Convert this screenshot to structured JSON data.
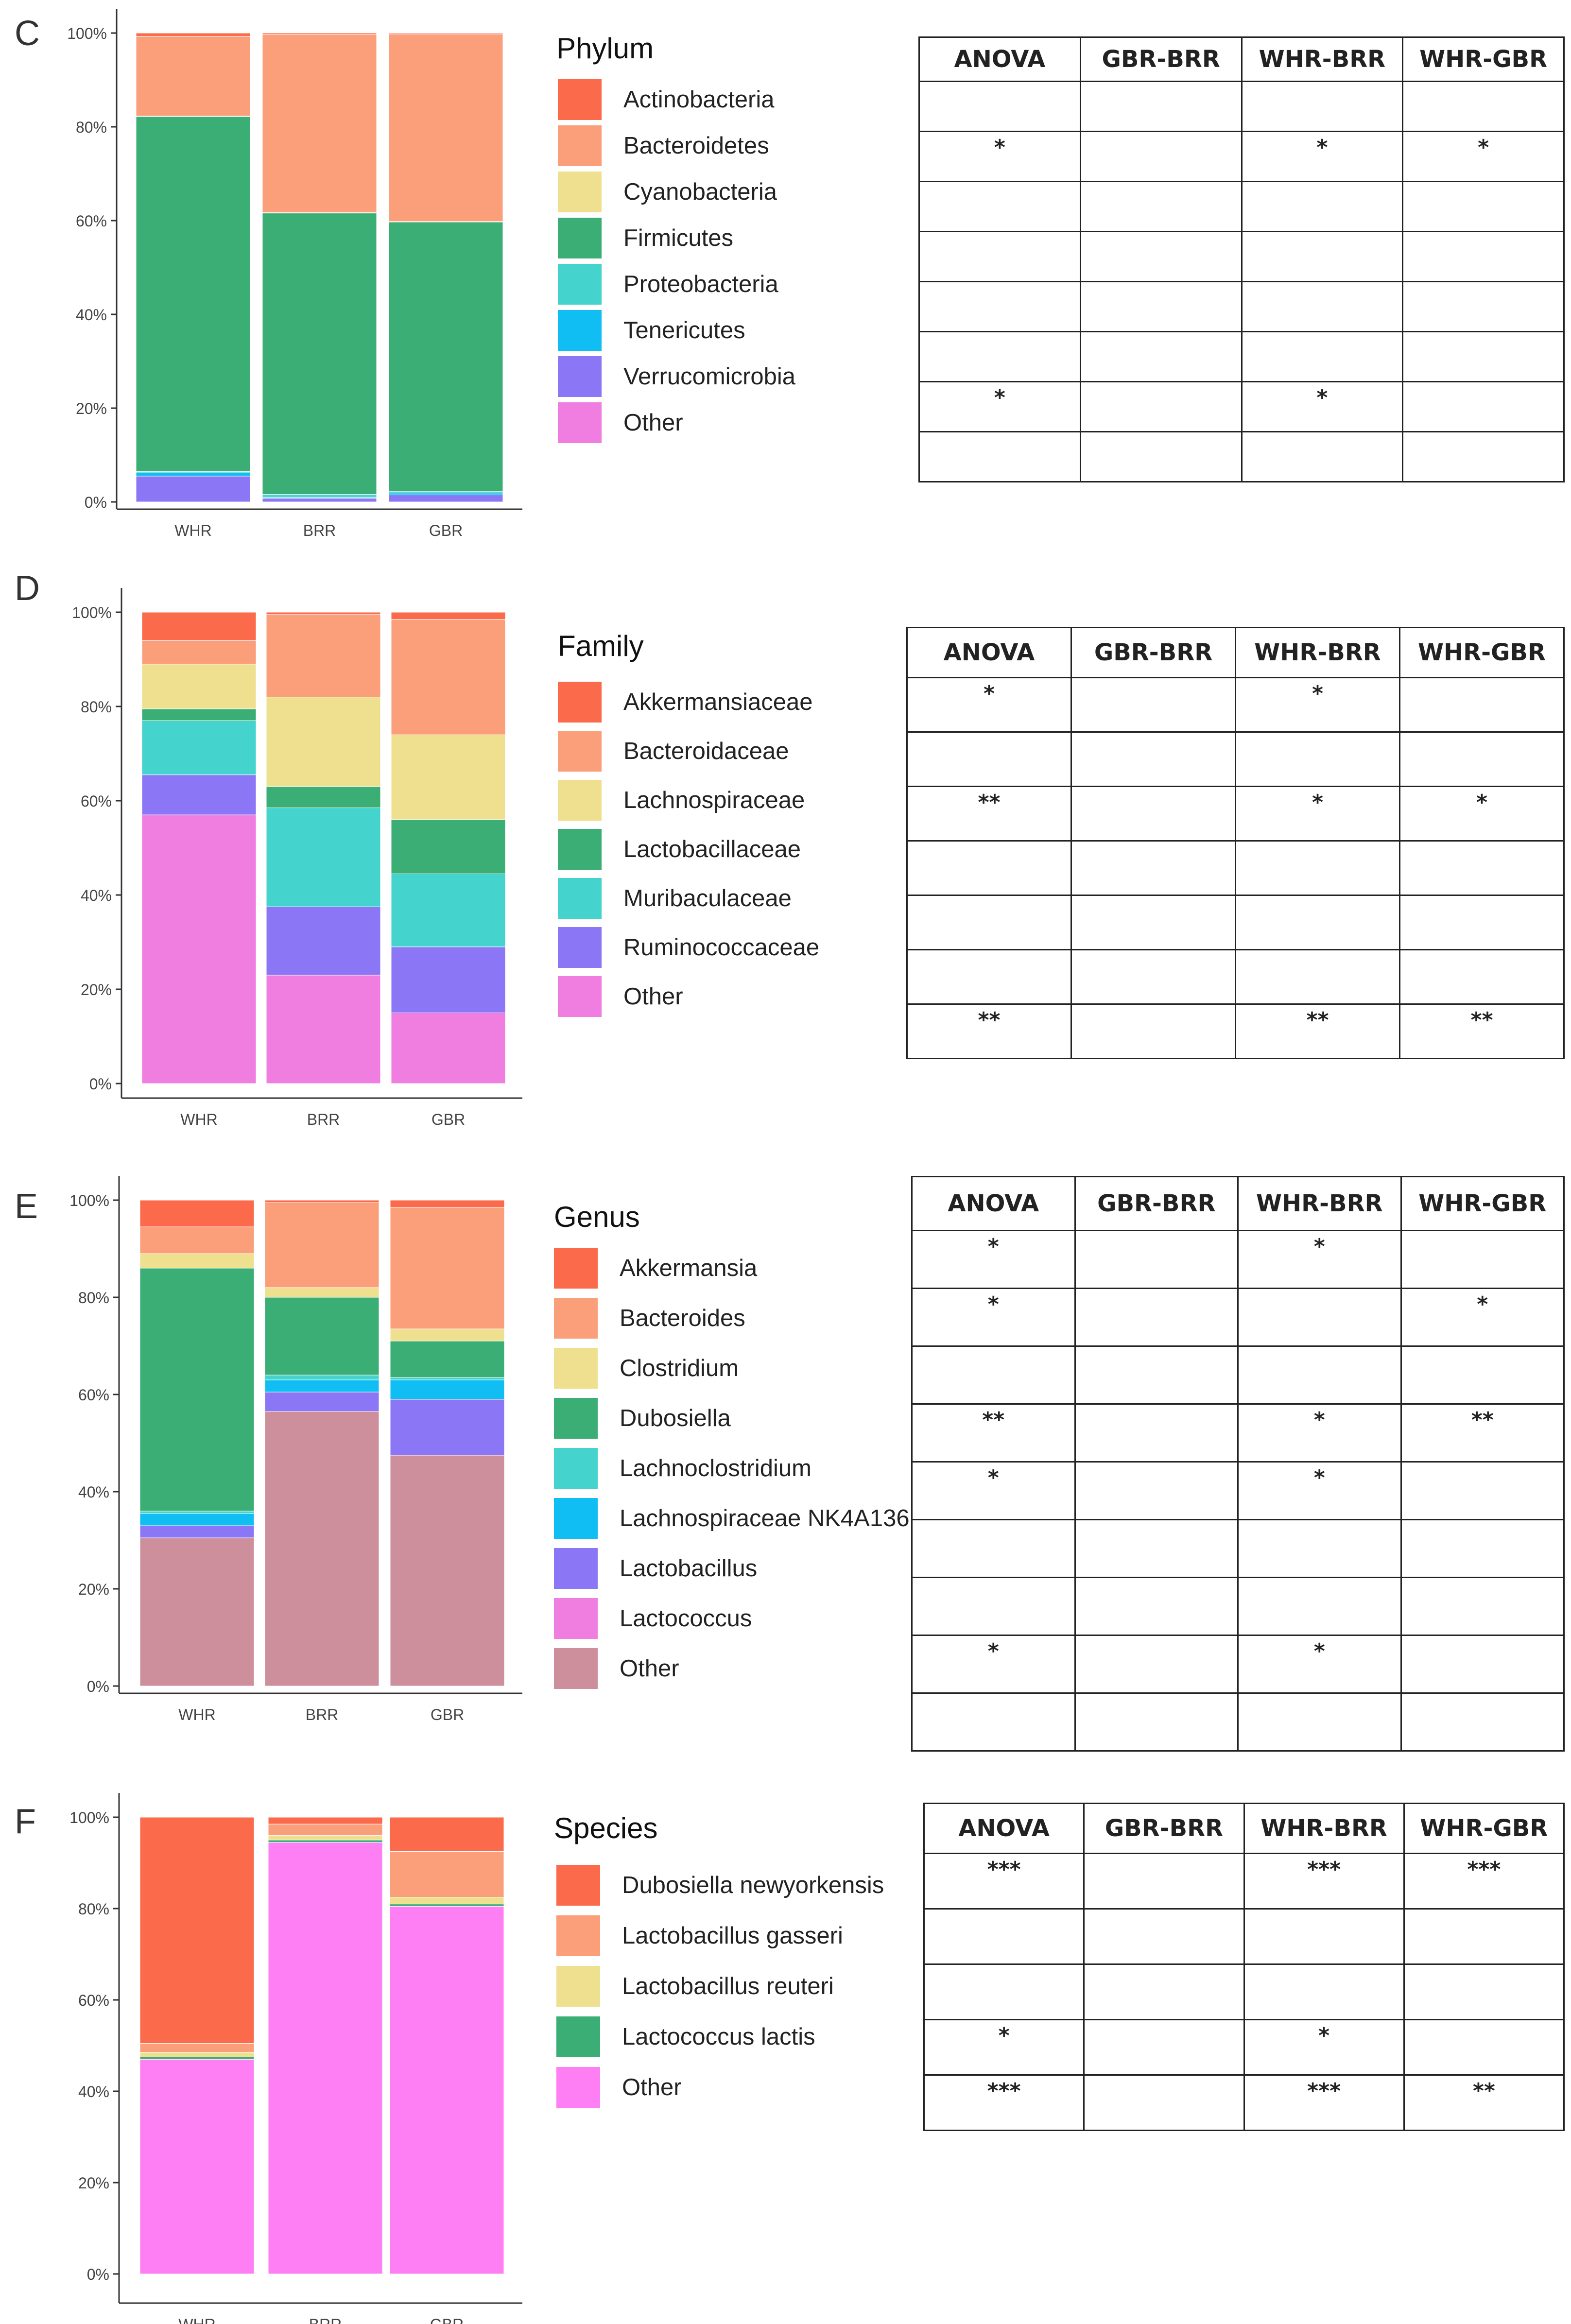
{
  "samples": [
    "WHR",
    "BRR",
    "GBR"
  ],
  "y_ticks": [
    "0%",
    "20%",
    "40%",
    "60%",
    "80%",
    "100%"
  ],
  "table_headers": [
    "ANOVA",
    "GBR-BRR",
    "WHR-BRR",
    "WHR-GBR"
  ],
  "colors": {
    "red": "#FA6A4B",
    "salmon": "#FB9E7A",
    "yellow": "#EEE08F",
    "green": "#3AAE74",
    "teal": "#45D3CE",
    "blue": "#10BEF3",
    "purple": "#8B77F5",
    "pink": "#F07DE0",
    "mauve": "#CE8F9C",
    "magenta": "#FE7FF4"
  },
  "chart_data": [
    {
      "panel": "C",
      "type": "bar",
      "stacked": true,
      "legend_title": "Phylum",
      "categories": [
        "WHR",
        "BRR",
        "GBR"
      ],
      "ylim": [
        0,
        100
      ],
      "series": [
        {
          "name": "Actinobacteria",
          "color": "#FA6A4B",
          "values": [
            0.7,
            0.3,
            0.2
          ]
        },
        {
          "name": "Bacteroidetes",
          "color": "#FB9E7A",
          "values": [
            17.0,
            38.0,
            40.0
          ]
        },
        {
          "name": "Cyanobacteria",
          "color": "#EEE08F",
          "values": [
            0.1,
            0.1,
            0.1
          ]
        },
        {
          "name": "Firmicutes",
          "color": "#3AAE74",
          "values": [
            75.7,
            60.0,
            57.5
          ]
        },
        {
          "name": "Proteobacteria",
          "color": "#45D3CE",
          "values": [
            0.3,
            0.6,
            0.3
          ]
        },
        {
          "name": "Tenericutes",
          "color": "#10BEF3",
          "values": [
            0.7,
            0.2,
            0.4
          ]
        },
        {
          "name": "Verrucomicrobia",
          "color": "#8B77F5",
          "values": [
            5.5,
            0.8,
            1.5
          ]
        },
        {
          "name": "Other",
          "color": "#F07DE0",
          "values": [
            0.0,
            0.0,
            0.0
          ]
        }
      ],
      "significance": [
        [
          "",
          "",
          "",
          ""
        ],
        [
          "*",
          "",
          "*",
          "*"
        ],
        [
          "",
          "",
          "",
          ""
        ],
        [
          "",
          "",
          "",
          ""
        ],
        [
          "",
          "",
          "",
          ""
        ],
        [
          "",
          "",
          "",
          ""
        ],
        [
          "*",
          "",
          "*",
          ""
        ],
        [
          "",
          "",
          "",
          ""
        ]
      ]
    },
    {
      "panel": "D",
      "type": "bar",
      "stacked": true,
      "legend_title": "Family",
      "categories": [
        "WHR",
        "BRR",
        "GBR"
      ],
      "ylim": [
        0,
        100
      ],
      "series": [
        {
          "name": "Akkermansiaceae",
          "color": "#FA6A4B",
          "values": [
            6.0,
            0.5,
            1.5
          ]
        },
        {
          "name": "Bacteroidaceae",
          "color": "#FB9E7A",
          "values": [
            5.0,
            17.5,
            24.5
          ]
        },
        {
          "name": "Lachnospiraceae",
          "color": "#EEE08F",
          "values": [
            9.5,
            19.0,
            18.0
          ]
        },
        {
          "name": "Lactobacillaceae",
          "color": "#3AAE74",
          "values": [
            2.5,
            4.5,
            11.5
          ]
        },
        {
          "name": "Muribaculaceae",
          "color": "#45D3CE",
          "values": [
            11.5,
            21.0,
            15.5
          ]
        },
        {
          "name": "Ruminococcaceae",
          "color": "#8B77F5",
          "values": [
            8.5,
            14.5,
            14.0
          ]
        },
        {
          "name": "Other",
          "color": "#F07DE0",
          "values": [
            57.0,
            23.0,
            15.0
          ]
        }
      ],
      "significance": [
        [
          "*",
          "",
          "*",
          ""
        ],
        [
          "",
          "",
          "",
          ""
        ],
        [
          "**",
          "",
          "*",
          "*"
        ],
        [
          "",
          "",
          "",
          ""
        ],
        [
          "",
          "",
          "",
          ""
        ],
        [
          "",
          "",
          "",
          ""
        ],
        [
          "**",
          "",
          "**",
          "**"
        ]
      ]
    },
    {
      "panel": "E",
      "type": "bar",
      "stacked": true,
      "legend_title": "Genus",
      "categories": [
        "WHR",
        "BRR",
        "GBR"
      ],
      "ylim": [
        0,
        100
      ],
      "series": [
        {
          "name": "Akkermansia",
          "color": "#FA6A4B",
          "values": [
            5.5,
            0.5,
            1.5
          ]
        },
        {
          "name": "Bacteroides",
          "color": "#FB9E7A",
          "values": [
            5.5,
            17.5,
            25.0
          ]
        },
        {
          "name": "Clostridium",
          "color": "#EEE08F",
          "values": [
            3.0,
            2.0,
            2.5
          ]
        },
        {
          "name": "Dubosiella",
          "color": "#3AAE74",
          "values": [
            50.0,
            16.0,
            7.5
          ]
        },
        {
          "name": "Lachnoclostridium",
          "color": "#45D3CE",
          "values": [
            0.5,
            1.0,
            0.5
          ]
        },
        {
          "name": "Lachnospiraceae NK4A136",
          "color": "#10BEF3",
          "values": [
            2.5,
            2.5,
            4.0
          ]
        },
        {
          "name": "Lactobacillus",
          "color": "#8B77F5",
          "values": [
            2.5,
            4.0,
            11.5
          ]
        },
        {
          "name": "Lactococcus",
          "color": "#F07DE0",
          "values": [
            0.0,
            0.0,
            0.0
          ]
        },
        {
          "name": "Other",
          "color": "#CE8F9C",
          "values": [
            30.5,
            56.5,
            47.5
          ]
        }
      ],
      "significance": [
        [
          "*",
          "",
          "*",
          ""
        ],
        [
          "*",
          "",
          "",
          "*"
        ],
        [
          "",
          "",
          "",
          ""
        ],
        [
          "**",
          "",
          "*",
          "**"
        ],
        [
          "*",
          "",
          "*",
          ""
        ],
        [
          "",
          "",
          "",
          ""
        ],
        [
          "",
          "",
          "",
          ""
        ],
        [
          "*",
          "",
          "*",
          ""
        ],
        [
          "",
          "",
          "",
          ""
        ]
      ]
    },
    {
      "panel": "F",
      "type": "bar",
      "stacked": true,
      "legend_title": "Species",
      "categories": [
        "WHR",
        "BRR",
        "GBR"
      ],
      "ylim": [
        0,
        100
      ],
      "series": [
        {
          "name": "Dubosiella newyorkensis",
          "color": "#FA6A4B",
          "values": [
            49.5,
            1.5,
            7.5
          ]
        },
        {
          "name": "Lactobacillus gasseri",
          "color": "#FB9E7A",
          "values": [
            2.0,
            2.5,
            10.0
          ]
        },
        {
          "name": "Lactobacillus reuteri",
          "color": "#EEE08F",
          "values": [
            1.0,
            1.0,
            1.5
          ]
        },
        {
          "name": "Lactococcus lactis",
          "color": "#3AAE74",
          "values": [
            0.5,
            0.5,
            0.5
          ]
        },
        {
          "name": "Other",
          "color": "#FE7FF4",
          "values": [
            47.0,
            94.5,
            80.5
          ]
        }
      ],
      "significance": [
        [
          "***",
          "",
          "***",
          "***"
        ],
        [
          "",
          "",
          "",
          ""
        ],
        [
          "",
          "",
          "",
          ""
        ],
        [
          "*",
          "",
          "*",
          ""
        ],
        [
          "***",
          "",
          "***",
          "**"
        ]
      ]
    }
  ]
}
